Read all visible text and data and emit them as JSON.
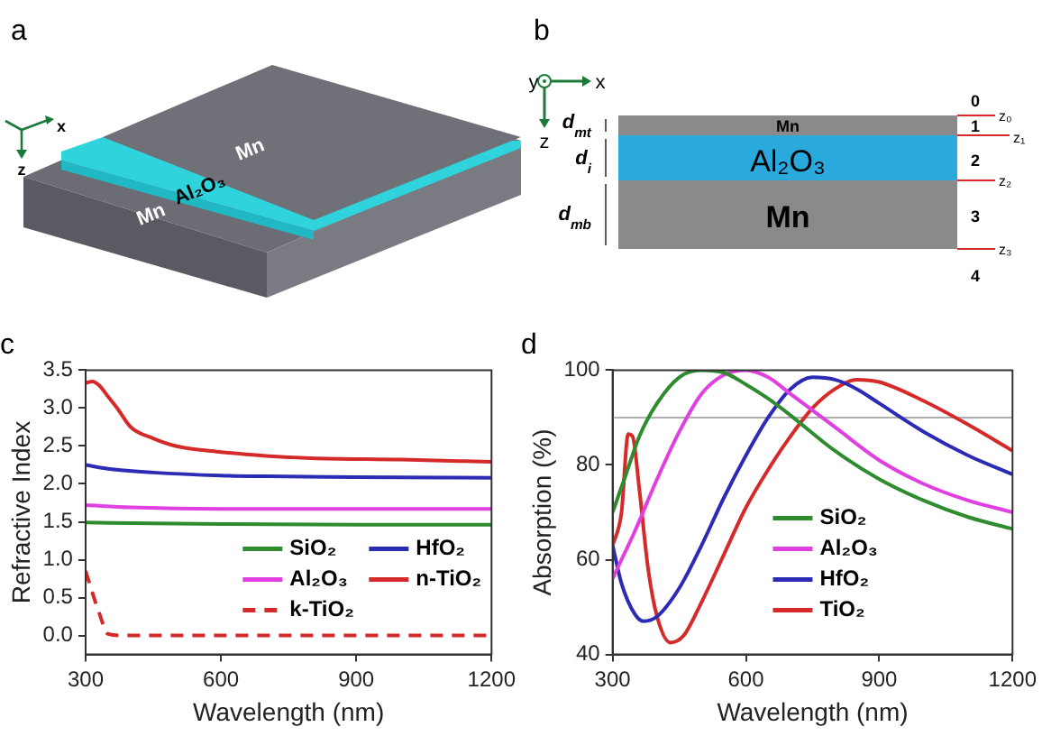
{
  "chart_data": [
    {
      "type": "other",
      "annotations": [
        "a",
        "z",
        "x",
        "Mn",
        "Al₂O₃",
        "Mn"
      ]
    },
    {
      "type": "other",
      "annotations": [
        "b",
        "y",
        "x",
        "z",
        "d$_{mt}$",
        "d$_{i}$",
        "d$_{mb}$",
        "Mn",
        "Al₂O₃",
        "Mn",
        "0",
        "1",
        "2",
        "3",
        "4",
        "z₀",
        "z₁",
        "z₂",
        "z₃"
      ]
    },
    {
      "type": "line",
      "title": "c",
      "xlabel": "Wavelength (nm)",
      "ylabel": "Refractive Index",
      "xlim": [
        300,
        1200
      ],
      "xticks": [
        300,
        600,
        900,
        1200
      ],
      "ylim": [
        -0.25,
        3.5
      ],
      "yticks": [
        {
          "value": 0,
          "label": "0.0"
        },
        0.5,
        {
          "value": 1,
          "label": "1.0"
        },
        1.5,
        {
          "value": 2,
          "label": "2.0"
        },
        2.5,
        {
          "value": 3,
          "label": "3.0"
        },
        3.5
      ],
      "legend": "bottom right",
      "marker": "none",
      "series": [
        {
          "name": "SiO₂",
          "color": "#2e8b2e",
          "x": [
            300,
            450,
            600,
            900,
            1200
          ],
          "values": [
            1.49,
            1.48,
            1.47,
            1.46,
            1.46
          ]
        },
        {
          "name": "HfO₂",
          "color": "#2b2bb5",
          "x": [
            300,
            350,
            450,
            600,
            700,
            900,
            1200
          ],
          "values": [
            2.25,
            2.2,
            2.15,
            2.11,
            2.1,
            2.09,
            2.08
          ]
        },
        {
          "name": "Al₂O₃",
          "color": "#e040e0",
          "x": [
            300,
            400,
            600,
            900,
            1200
          ],
          "values": [
            1.72,
            1.69,
            1.67,
            1.67,
            1.67
          ]
        },
        {
          "name": "n-TiO₂",
          "color": "#d42a2a",
          "x": [
            300,
            315,
            330,
            350,
            370,
            400,
            450,
            500,
            600,
            700,
            800,
            1000,
            1200
          ],
          "values": [
            3.33,
            3.35,
            3.3,
            3.15,
            3.0,
            2.75,
            2.6,
            2.5,
            2.42,
            2.37,
            2.34,
            2.32,
            2.29
          ]
        },
        {
          "name": "k-TiO₂",
          "color": "#d42a2a",
          "line_style": "dashed",
          "x": [
            300,
            330,
            350,
            380,
            600,
            900,
            1200
          ],
          "values": [
            0.85,
            0.3,
            0.02,
            0,
            0,
            0,
            0
          ]
        }
      ]
    },
    {
      "type": "line",
      "title": "d",
      "xlabel": "Wavelength (nm)",
      "ylabel": "Absorption (%)",
      "xlim": [
        300,
        1200
      ],
      "xticks": [
        300,
        600,
        900,
        1200
      ],
      "ylim": [
        40,
        100
      ],
      "yticks": [
        40,
        60,
        80,
        100
      ],
      "legend": "bottom",
      "marker": "none",
      "ref_lines": [
        {
          "axis": "y",
          "value": 90,
          "color": "#b0b0b0"
        }
      ],
      "series": [
        {
          "name": "SiO₂",
          "color": "#2e8b2e",
          "x": [
            300,
            330,
            360,
            400,
            450,
            500,
            550,
            600,
            650,
            700,
            800,
            900,
            1000,
            1100,
            1200
          ],
          "values": [
            70,
            78,
            86,
            93,
            98.5,
            100,
            99.5,
            97,
            94,
            90.5,
            83,
            77,
            72.5,
            69,
            66.5
          ]
        },
        {
          "name": "Al₂O₃",
          "color": "#e040e0",
          "x": [
            300,
            320,
            350,
            400,
            450,
            500,
            550,
            600,
            650,
            700,
            800,
            900,
            1000,
            1100,
            1200
          ],
          "values": [
            56,
            60,
            66,
            77,
            87,
            95,
            99,
            100,
            98.5,
            95,
            88,
            81,
            76,
            72.5,
            70
          ]
        },
        {
          "name": "HfO₂",
          "color": "#2b2bb5",
          "x": [
            300,
            320,
            350,
            370,
            400,
            450,
            500,
            550,
            600,
            650,
            700,
            750,
            800,
            850,
            900,
            1000,
            1100,
            1200
          ],
          "values": [
            63,
            55,
            48.5,
            47,
            48,
            54,
            63,
            73,
            82,
            90,
            96,
            98.5,
            98,
            96,
            93,
            87,
            82,
            78
          ]
        },
        {
          "name": "TiO₂",
          "color": "#d42a2a",
          "x": [
            300,
            320,
            335,
            345,
            360,
            380,
            400,
            430,
            460,
            500,
            550,
            600,
            650,
            700,
            750,
            800,
            850,
            900,
            1000,
            1100,
            1200
          ],
          "values": [
            63,
            70,
            86.5,
            86,
            75,
            58,
            48,
            42.5,
            44,
            51,
            61,
            71,
            79,
            86,
            92,
            96,
            98,
            97.5,
            93.5,
            88.5,
            83
          ]
        }
      ]
    }
  ]
}
